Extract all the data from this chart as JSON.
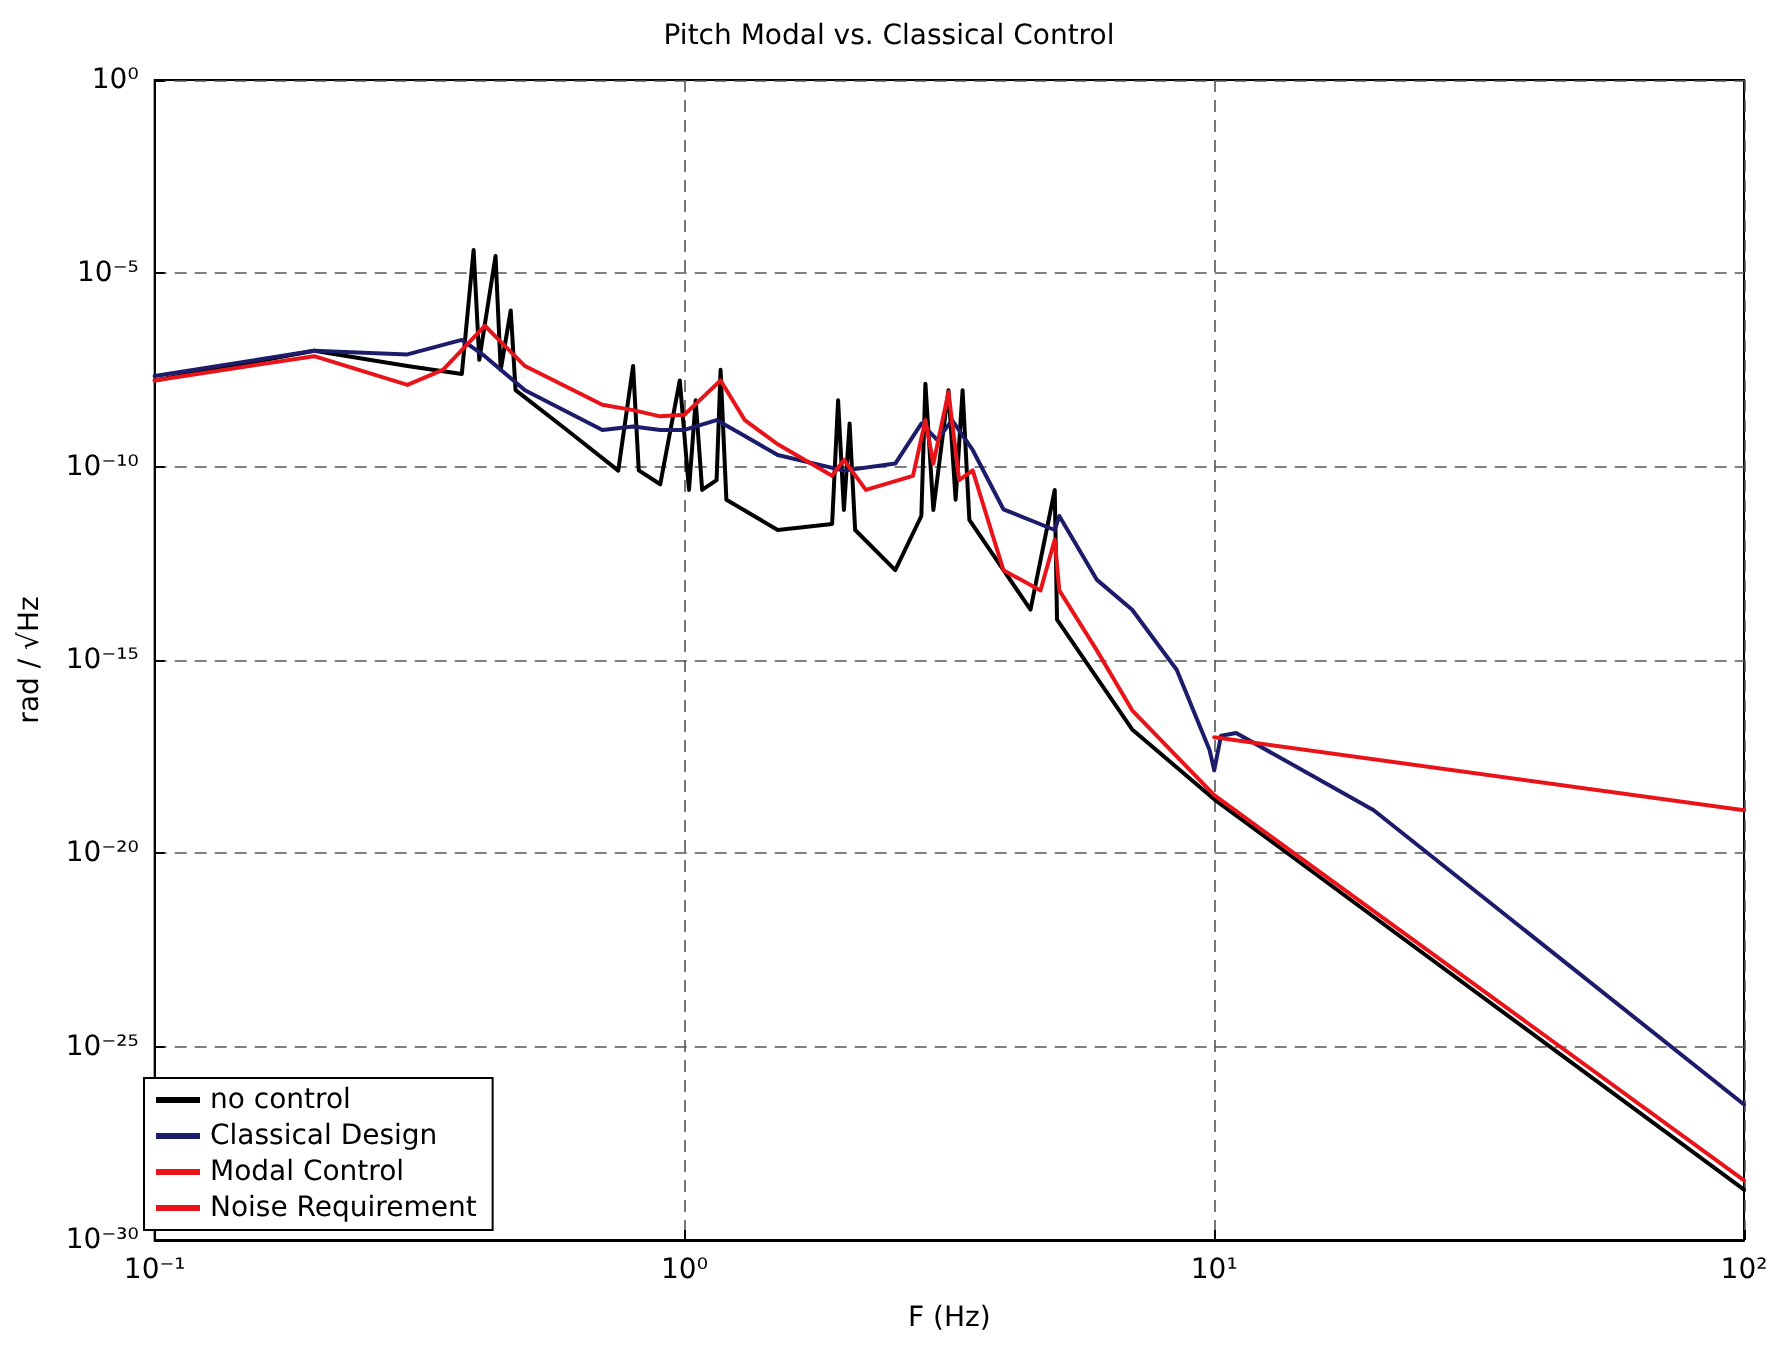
{
  "chart_data": {
    "type": "line",
    "title": "Pitch Modal vs. Classical Control",
    "xlabel": "F (Hz)",
    "ylabel": "rad / √Hz",
    "log": "xy",
    "grid": true,
    "legend": "bottom left",
    "xlim": [
      0.1,
      100
    ],
    "xticks": [
      {
        "value": 0.1,
        "label": "10⁻¹"
      },
      {
        "value": 1,
        "label": "10⁰"
      },
      {
        "value": 10,
        "label": "10¹"
      },
      {
        "value": 100,
        "label": "10²"
      }
    ],
    "ylim": [
      1e-30,
      1
    ],
    "yticks": [
      {
        "value": 1,
        "label": "10⁰"
      },
      {
        "value": 1e-05,
        "label": "10⁻⁵"
      },
      {
        "value": 1e-10,
        "label": "10⁻¹⁰"
      },
      {
        "value": 1e-15,
        "label": "10⁻¹⁵"
      },
      {
        "value": 1e-20,
        "label": "10⁻²⁰"
      },
      {
        "value": 1e-25,
        "label": "10⁻²⁵"
      },
      {
        "value": 1e-30,
        "label": "10⁻³⁰"
      }
    ],
    "series": [
      {
        "name": "no control",
        "color": "#000000",
        "x": [
          0.1,
          0.2,
          0.3,
          0.38,
          0.4,
          0.41,
          0.44,
          0.45,
          0.47,
          0.48,
          0.6,
          0.75,
          0.8,
          0.82,
          0.9,
          0.98,
          1.02,
          1.05,
          1.08,
          1.15,
          1.17,
          1.2,
          1.5,
          1.9,
          1.95,
          2.0,
          2.05,
          2.1,
          2.5,
          2.8,
          2.85,
          2.95,
          3.15,
          3.25,
          3.35,
          3.45,
          4.5,
          5.0,
          5.05,
          7,
          10,
          100
        ],
        "values": [
          1.7e-08,
          1e-07,
          4e-08,
          2.5e-08,
          4e-05,
          5.8e-08,
          2.8e-05,
          3.2e-08,
          1.1e-06,
          9.5e-09,
          8.9e-10,
          7.9e-11,
          4e-08,
          8e-11,
          3.5e-11,
          1.7e-08,
          2.5e-11,
          5.2e-09,
          2.5e-11,
          4.5e-11,
          3.2e-08,
          1.4e-11,
          2.3e-12,
          3.3e-12,
          5.2e-09,
          7.6e-12,
          1.3e-09,
          2.3e-12,
          2.1e-13,
          5.3e-12,
          1.4e-08,
          7.6e-12,
          9.5e-09,
          1.4e-11,
          9.5e-09,
          4.2e-12,
          2e-14,
          2.5e-11,
          1.1e-14,
          1.6e-17,
          2.5e-19,
          2e-29
        ]
      },
      {
        "name": "Classical Design",
        "color": "#1c1c6b",
        "x": [
          0.1,
          0.2,
          0.3,
          0.38,
          0.42,
          0.5,
          0.7,
          0.8,
          0.9,
          1.0,
          1.15,
          1.3,
          1.5,
          2.0,
          2.5,
          2.8,
          3.0,
          3.2,
          3.5,
          4.0,
          5.0,
          5.1,
          6,
          7,
          8.5,
          9.8,
          10,
          10.3,
          11,
          20,
          100
        ],
        "values": [
          2.2e-08,
          1e-07,
          8e-08,
          1.9e-07,
          7.2e-08,
          9.5e-09,
          8.9e-10,
          1.1e-09,
          8.9e-10,
          8.9e-10,
          1.6e-09,
          6.2e-10,
          2e-10,
          7.9e-11,
          1.2e-10,
          1.3e-09,
          4.9e-10,
          1.6e-09,
          2.7e-10,
          7.9e-12,
          2.3e-12,
          5.3e-12,
          1.2e-13,
          2e-14,
          5.5e-16,
          4.7e-18,
          1.4e-18,
          1.1e-17,
          1.3e-17,
          1.3e-19,
          3.2e-27
        ]
      },
      {
        "name": "Modal Control",
        "color": "#e8141a",
        "x": [
          0.1,
          0.2,
          0.3,
          0.35,
          0.42,
          0.5,
          0.7,
          0.8,
          0.9,
          1.0,
          1.17,
          1.3,
          1.5,
          1.9,
          2.0,
          2.2,
          2.7,
          2.85,
          2.95,
          3.15,
          3.3,
          3.5,
          4.0,
          4.7,
          5.0,
          5.1,
          6,
          7,
          10,
          100
        ],
        "values": [
          1.7e-08,
          7.2e-08,
          1.3e-08,
          3.2e-08,
          4.4e-07,
          4e-08,
          4e-09,
          2.9e-09,
          2e-09,
          2.2e-09,
          1.7e-08,
          1.6e-09,
          3.8e-10,
          5.8e-11,
          1.5e-10,
          2.5e-11,
          5.8e-11,
          1.6e-09,
          1.2e-10,
          8.5e-09,
          4.5e-11,
          8e-11,
          2.1e-13,
          6.3e-14,
          1.3e-12,
          6.3e-14,
          1.8e-15,
          5e-17,
          3.2e-19,
          3.5e-29
        ]
      },
      {
        "name": "Noise Requirement",
        "color": "#e8141a",
        "x": [
          10,
          100
        ],
        "values": [
          1e-17,
          1.3e-19
        ]
      }
    ]
  }
}
